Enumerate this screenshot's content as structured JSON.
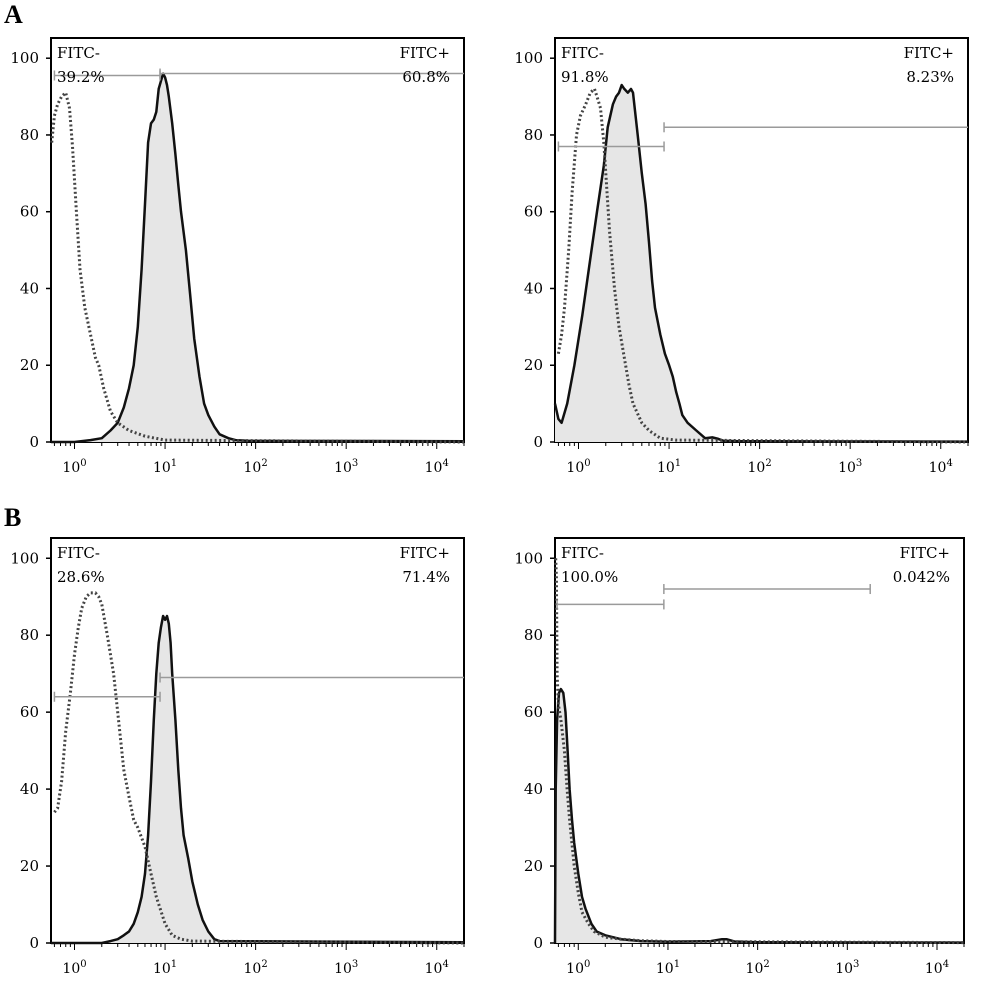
{
  "sections": [
    {
      "label": "A"
    },
    {
      "label": "B"
    }
  ],
  "chart_data": [
    {
      "type": "histogram",
      "section": "A",
      "xscale": "log",
      "xlim": [
        0.55,
        20000
      ],
      "ylim": [
        0,
        100
      ],
      "yticks": [
        "0",
        "20",
        "40",
        "60",
        "80",
        "100"
      ],
      "xticks": [
        "10^0",
        "10^1",
        "10^2",
        "10^3",
        "10^4"
      ],
      "gates": [
        {
          "name": "FITC-",
          "label": "FITC-",
          "percent": "39.2%",
          "range": [
            0.6,
            8.8
          ]
        },
        {
          "name": "FITC+",
          "label": "FITC+",
          "percent": "60.8%",
          "range": [
            8.8,
            20000
          ]
        }
      ],
      "series": [
        {
          "style": "dotted",
          "points": [
            [
              0.56,
              78
            ],
            [
              0.6,
              85
            ],
            [
              0.65,
              88
            ],
            [
              0.72,
              90
            ],
            [
              0.8,
              91
            ],
            [
              0.88,
              87
            ],
            [
              0.95,
              77
            ],
            [
              1.05,
              60
            ],
            [
              1.15,
              45
            ],
            [
              1.3,
              35
            ],
            [
              1.5,
              28
            ],
            [
              1.7,
              22
            ],
            [
              1.85,
              20
            ],
            [
              2.1,
              14
            ],
            [
              2.5,
              8
            ],
            [
              3,
              5
            ],
            [
              4,
              3
            ],
            [
              6,
              1.5
            ],
            [
              10,
              0.5
            ],
            [
              20000,
              0
            ]
          ]
        },
        {
          "style": "solid",
          "fill": "#e6e6e6",
          "points": [
            [
              0.55,
              0
            ],
            [
              1,
              0
            ],
            [
              1.5,
              0.5
            ],
            [
              2,
              1
            ],
            [
              2.5,
              3
            ],
            [
              3,
              5
            ],
            [
              3.5,
              9
            ],
            [
              4,
              14
            ],
            [
              4.5,
              20
            ],
            [
              5,
              30
            ],
            [
              5.5,
              45
            ],
            [
              6,
              62
            ],
            [
              6.5,
              78
            ],
            [
              7,
              83
            ],
            [
              7.5,
              84
            ],
            [
              8,
              86
            ],
            [
              8.5,
              92
            ],
            [
              9,
              94
            ],
            [
              9.5,
              96
            ],
            [
              10,
              95
            ],
            [
              10.5,
              93
            ],
            [
              11,
              90
            ],
            [
              12,
              83
            ],
            [
              13,
              75
            ],
            [
              14,
              67
            ],
            [
              15,
              60
            ],
            [
              17,
              50
            ],
            [
              19,
              38
            ],
            [
              21,
              27
            ],
            [
              24,
              17
            ],
            [
              27,
              10
            ],
            [
              30,
              7
            ],
            [
              35,
              4
            ],
            [
              40,
              2
            ],
            [
              50,
              1
            ],
            [
              60,
              0.5
            ],
            [
              80,
              0.3
            ],
            [
              20000,
              0.2
            ]
          ]
        }
      ]
    },
    {
      "type": "histogram",
      "section": "A",
      "xscale": "log",
      "xlim": [
        0.55,
        20000
      ],
      "ylim": [
        0,
        100
      ],
      "yticks": [
        "0",
        "20",
        "40",
        "60",
        "80",
        "100"
      ],
      "xticks": [
        "10^0",
        "10^1",
        "10^2",
        "10^3",
        "10^4"
      ],
      "gates": [
        {
          "name": "FITC-",
          "label": "FITC-",
          "percent": "91.8%",
          "range": [
            0.6,
            8.8
          ]
        },
        {
          "name": "FITC+",
          "label": "FITC+",
          "percent": "8.23%",
          "range": [
            8.8,
            20000
          ]
        }
      ],
      "series": [
        {
          "style": "dotted",
          "points": [
            [
              0.6,
              23
            ],
            [
              0.65,
              28
            ],
            [
              0.7,
              35
            ],
            [
              0.78,
              50
            ],
            [
              0.85,
              65
            ],
            [
              0.95,
              80
            ],
            [
              1.05,
              85
            ],
            [
              1.2,
              88
            ],
            [
              1.35,
              91
            ],
            [
              1.5,
              92
            ],
            [
              1.6,
              90
            ],
            [
              1.75,
              87
            ],
            [
              1.9,
              78
            ],
            [
              2,
              70
            ],
            [
              2.2,
              55
            ],
            [
              2.5,
              40
            ],
            [
              2.8,
              30
            ],
            [
              3.2,
              22
            ],
            [
              3.6,
              15
            ],
            [
              4,
              10
            ],
            [
              5,
              5
            ],
            [
              6,
              3
            ],
            [
              8,
              1
            ],
            [
              12,
              0.5
            ],
            [
              20000,
              0
            ]
          ]
        },
        {
          "style": "solid",
          "fill": "#e6e6e6",
          "points": [
            [
              0.55,
              10
            ],
            [
              0.6,
              6
            ],
            [
              0.65,
              5
            ],
            [
              0.75,
              10
            ],
            [
              0.9,
              20
            ],
            [
              1.1,
              33
            ],
            [
              1.3,
              45
            ],
            [
              1.6,
              60
            ],
            [
              1.9,
              72
            ],
            [
              2.1,
              82
            ],
            [
              2.4,
              88
            ],
            [
              2.6,
              90
            ],
            [
              2.8,
              91
            ],
            [
              3,
              93
            ],
            [
              3.2,
              92
            ],
            [
              3.5,
              91
            ],
            [
              3.8,
              92
            ],
            [
              4,
              91
            ],
            [
              4.5,
              80
            ],
            [
              5,
              70
            ],
            [
              5.5,
              62
            ],
            [
              6,
              52
            ],
            [
              6.5,
              42
            ],
            [
              7,
              35
            ],
            [
              8,
              28
            ],
            [
              9,
              23
            ],
            [
              10,
              20
            ],
            [
              11,
              17
            ],
            [
              12,
              13
            ],
            [
              13,
              10
            ],
            [
              14,
              7
            ],
            [
              16,
              5
            ],
            [
              20,
              3
            ],
            [
              25,
              1
            ],
            [
              30,
              1.2
            ],
            [
              35,
              0.8
            ],
            [
              40,
              0.3
            ],
            [
              60,
              0.2
            ],
            [
              20000,
              0.1
            ]
          ]
        }
      ]
    },
    {
      "type": "histogram",
      "section": "B",
      "xscale": "log",
      "xlim": [
        0.55,
        20000
      ],
      "ylim": [
        0,
        100
      ],
      "yticks": [
        "0",
        "20",
        "40",
        "60",
        "80",
        "100"
      ],
      "xticks": [
        "10^0",
        "10^1",
        "10^2",
        "10^3",
        "10^4"
      ],
      "gates": [
        {
          "name": "FITC-",
          "label": "FITC-",
          "percent": "28.6%",
          "range": [
            0.6,
            8.8
          ]
        },
        {
          "name": "FITC+",
          "label": "FITC+",
          "percent": "71.4%",
          "range": [
            8.8,
            20000
          ]
        }
      ],
      "series": [
        {
          "style": "dotted",
          "points": [
            [
              0.6,
              34
            ],
            [
              0.65,
              35
            ],
            [
              0.72,
              42
            ],
            [
              0.8,
              55
            ],
            [
              0.9,
              65
            ],
            [
              1,
              75
            ],
            [
              1.1,
              82
            ],
            [
              1.2,
              87
            ],
            [
              1.35,
              90
            ],
            [
              1.5,
              91
            ],
            [
              1.7,
              91
            ],
            [
              1.85,
              90
            ],
            [
              2,
              88
            ],
            [
              2.3,
              80
            ],
            [
              2.7,
              70
            ],
            [
              3,
              60
            ],
            [
              3.5,
              45
            ],
            [
              4,
              38
            ],
            [
              4.5,
              32
            ],
            [
              5,
              30
            ],
            [
              6,
              25
            ],
            [
              7,
              18
            ],
            [
              8,
              12
            ],
            [
              10,
              5
            ],
            [
              12,
              2
            ],
            [
              15,
              1
            ],
            [
              20,
              0.5
            ],
            [
              20000,
              0
            ]
          ]
        },
        {
          "style": "solid",
          "fill": "#e6e6e6",
          "points": [
            [
              0.55,
              0
            ],
            [
              2,
              0
            ],
            [
              2.5,
              0.5
            ],
            [
              3,
              1
            ],
            [
              3.5,
              2
            ],
            [
              4,
              3
            ],
            [
              4.5,
              5
            ],
            [
              5,
              8
            ],
            [
              5.5,
              12
            ],
            [
              6,
              18
            ],
            [
              6.5,
              28
            ],
            [
              7,
              42
            ],
            [
              7.5,
              58
            ],
            [
              8,
              70
            ],
            [
              8.5,
              78
            ],
            [
              9,
              82
            ],
            [
              9.5,
              85
            ],
            [
              10,
              84
            ],
            [
              10.5,
              85
            ],
            [
              11,
              83
            ],
            [
              11.5,
              78
            ],
            [
              12,
              70
            ],
            [
              13,
              58
            ],
            [
              14,
              45
            ],
            [
              15,
              35
            ],
            [
              16,
              28
            ],
            [
              18,
              22
            ],
            [
              20,
              16
            ],
            [
              23,
              10
            ],
            [
              26,
              6
            ],
            [
              30,
              3
            ],
            [
              35,
              1
            ],
            [
              40,
              0.5
            ],
            [
              20000,
              0.2
            ]
          ]
        }
      ]
    },
    {
      "type": "histogram",
      "section": "B",
      "xscale": "log",
      "xlim": [
        0.55,
        20000
      ],
      "ylim": [
        0,
        100
      ],
      "yticks": [
        "0",
        "20",
        "40",
        "60",
        "80",
        "100"
      ],
      "xticks": [
        "10^0",
        "10^1",
        "10^2",
        "10^3",
        "10^4"
      ],
      "gates": [
        {
          "name": "FITC-",
          "label": "FITC-",
          "percent": "100.0%",
          "range": [
            0.58,
            9
          ]
        },
        {
          "name": "FITC+",
          "label": "FITC+",
          "percent": "0.042%",
          "range": [
            9,
            1800
          ]
        }
      ],
      "series": [
        {
          "style": "dotted",
          "points": [
            [
              0.56,
              100
            ],
            [
              0.57,
              95
            ],
            [
              0.58,
              70
            ],
            [
              0.6,
              62
            ],
            [
              0.64,
              58
            ],
            [
              0.7,
              50
            ],
            [
              0.75,
              40
            ],
            [
              0.8,
              32
            ],
            [
              0.9,
              20
            ],
            [
              1,
              13
            ],
            [
              1.1,
              8
            ],
            [
              1.3,
              5
            ],
            [
              1.5,
              3
            ],
            [
              2,
              1.5
            ],
            [
              3,
              1
            ],
            [
              5,
              0.6
            ],
            [
              10,
              0.4
            ],
            [
              100,
              0.3
            ],
            [
              1000,
              0.2
            ],
            [
              20000,
              0.1
            ]
          ]
        },
        {
          "style": "solid",
          "fill": "#e6e6e6",
          "points": [
            [
              0.55,
              0
            ],
            [
              0.56,
              40
            ],
            [
              0.58,
              58
            ],
            [
              0.61,
              65
            ],
            [
              0.64,
              66
            ],
            [
              0.68,
              65
            ],
            [
              0.72,
              60
            ],
            [
              0.76,
              50
            ],
            [
              0.8,
              40
            ],
            [
              0.85,
              32
            ],
            [
              0.9,
              26
            ],
            [
              1,
              18
            ],
            [
              1.1,
              12
            ],
            [
              1.2,
              9
            ],
            [
              1.4,
              5
            ],
            [
              1.6,
              3
            ],
            [
              2,
              2
            ],
            [
              3,
              1
            ],
            [
              5,
              0.5
            ],
            [
              10,
              0.3
            ],
            [
              30,
              0.5
            ],
            [
              40,
              1
            ],
            [
              45,
              1
            ],
            [
              55,
              0.4
            ],
            [
              100,
              0.2
            ],
            [
              20000,
              0.1
            ]
          ]
        }
      ]
    }
  ]
}
